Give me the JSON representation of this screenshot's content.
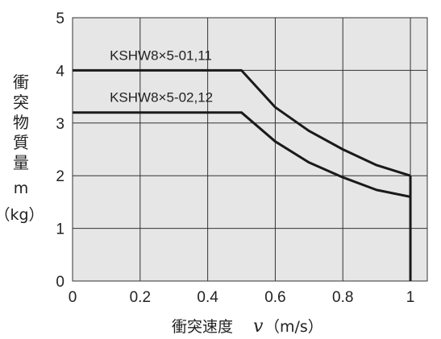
{
  "chart_data": {
    "type": "line",
    "xlabel_prefix": "衝突速度",
    "xlabel_var": "v",
    "xlabel_unit": "（m/s）",
    "ylabel_chars": [
      "衝",
      "突",
      "物",
      "質",
      "量"
    ],
    "ylabel_var": "m",
    "ylabel_unit": "（kg）",
    "xlim": [
      0,
      1.05
    ],
    "ylim": [
      0,
      5
    ],
    "x_ticks": [
      0,
      0.2,
      0.4,
      0.6,
      0.8,
      1
    ],
    "x_tick_labels": [
      "0",
      "0.2",
      "0.4",
      "0.6",
      "0.8",
      "1"
    ],
    "y_ticks": [
      0,
      1,
      2,
      3,
      4,
      5
    ],
    "y_tick_labels": [
      "0",
      "1",
      "2",
      "3",
      "4",
      "5"
    ],
    "grid": true,
    "background": "#e6e6e6",
    "line_color": "#1a1a1a",
    "series": [
      {
        "name": "KSHW8×5-01,11",
        "x": [
          0,
          0.5,
          0.6,
          0.7,
          0.8,
          0.9,
          1.0
        ],
        "y": [
          4.0,
          4.0,
          3.3,
          2.85,
          2.5,
          2.2,
          2.0
        ]
      },
      {
        "name": "KSHW8×5-02,12",
        "x": [
          0,
          0.5,
          0.6,
          0.7,
          0.8,
          0.9,
          1.0
        ],
        "y": [
          3.2,
          3.2,
          2.65,
          2.25,
          1.97,
          1.73,
          1.6
        ]
      }
    ],
    "vertical_drop": {
      "x": 1.0,
      "y_from": 2.0,
      "y_to": 0
    }
  }
}
